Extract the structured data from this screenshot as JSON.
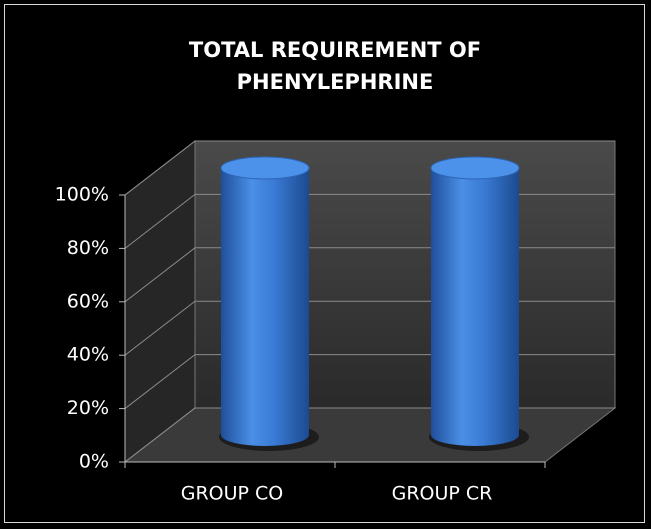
{
  "chart_data": {
    "type": "bar3d",
    "title": "TOTAL REQUIREMENT OF PHENYLEPHRINE",
    "categories": [
      "GROUP CO",
      "GROUP CR"
    ],
    "values": [
      100,
      100
    ],
    "color": "#3a7bd5",
    "ylim": [
      0,
      100
    ],
    "yticks": [
      {
        "value": 0,
        "label": "0%"
      },
      {
        "value": 20,
        "label": "20%"
      },
      {
        "value": 40,
        "label": "40%"
      },
      {
        "value": 60,
        "label": "60%"
      },
      {
        "value": 80,
        "label": "80%"
      },
      {
        "value": 100,
        "label": "100%"
      }
    ],
    "grid": true
  }
}
